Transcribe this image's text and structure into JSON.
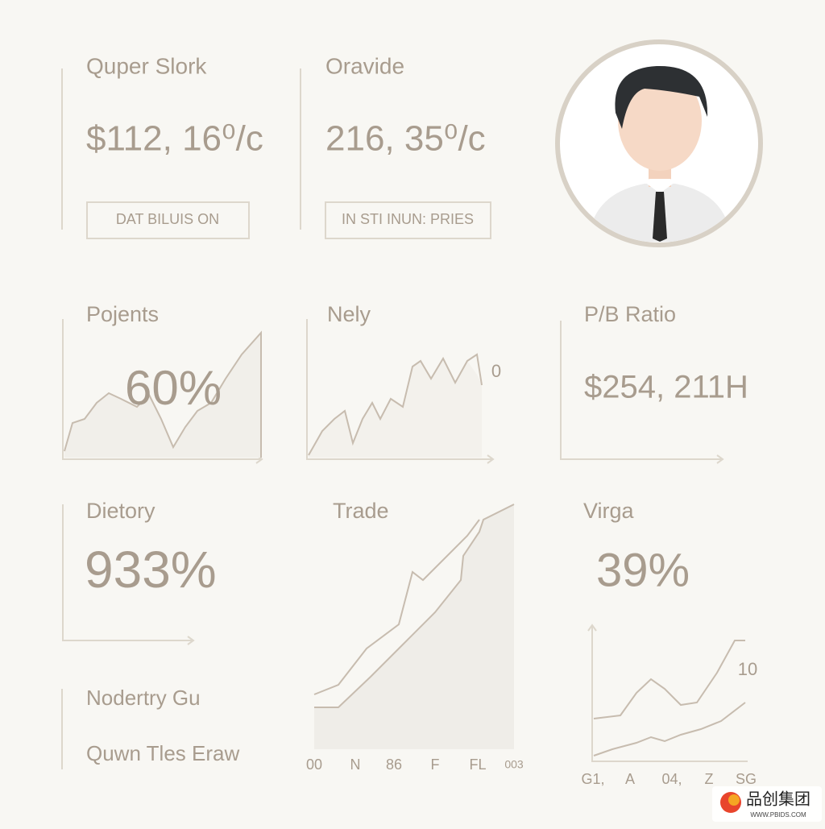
{
  "cards": [
    {
      "title": "Quper Slork",
      "value": "$112, 16⁰/c",
      "button": "DAT BILUIS ON"
    },
    {
      "title": "Oravide",
      "value": "216, 35⁰/c",
      "button": "IN STI INUN: PRIES"
    }
  ],
  "metrics": [
    {
      "title": "Pojents",
      "value": "60%"
    },
    {
      "title": "Nely",
      "note": "0"
    },
    {
      "title": "P/B Ratio",
      "value": "$254, 211H"
    },
    {
      "title": "Dietory",
      "value": "933%"
    },
    {
      "title": "Trade",
      "labels": [
        "00",
        "N",
        "86",
        "F",
        "FL",
        "003"
      ]
    },
    {
      "title": "Virga",
      "value": "39%",
      "note": "10",
      "labels": [
        "G1,",
        "A",
        "04,",
        "Z",
        "SG"
      ]
    }
  ],
  "footer": {
    "line1": "Nodertry Gu",
    "line2": "Quwn Tles Eraw"
  },
  "watermark": {
    "brand": "品创集团",
    "url": "WWW.PBIDS.COM"
  }
}
